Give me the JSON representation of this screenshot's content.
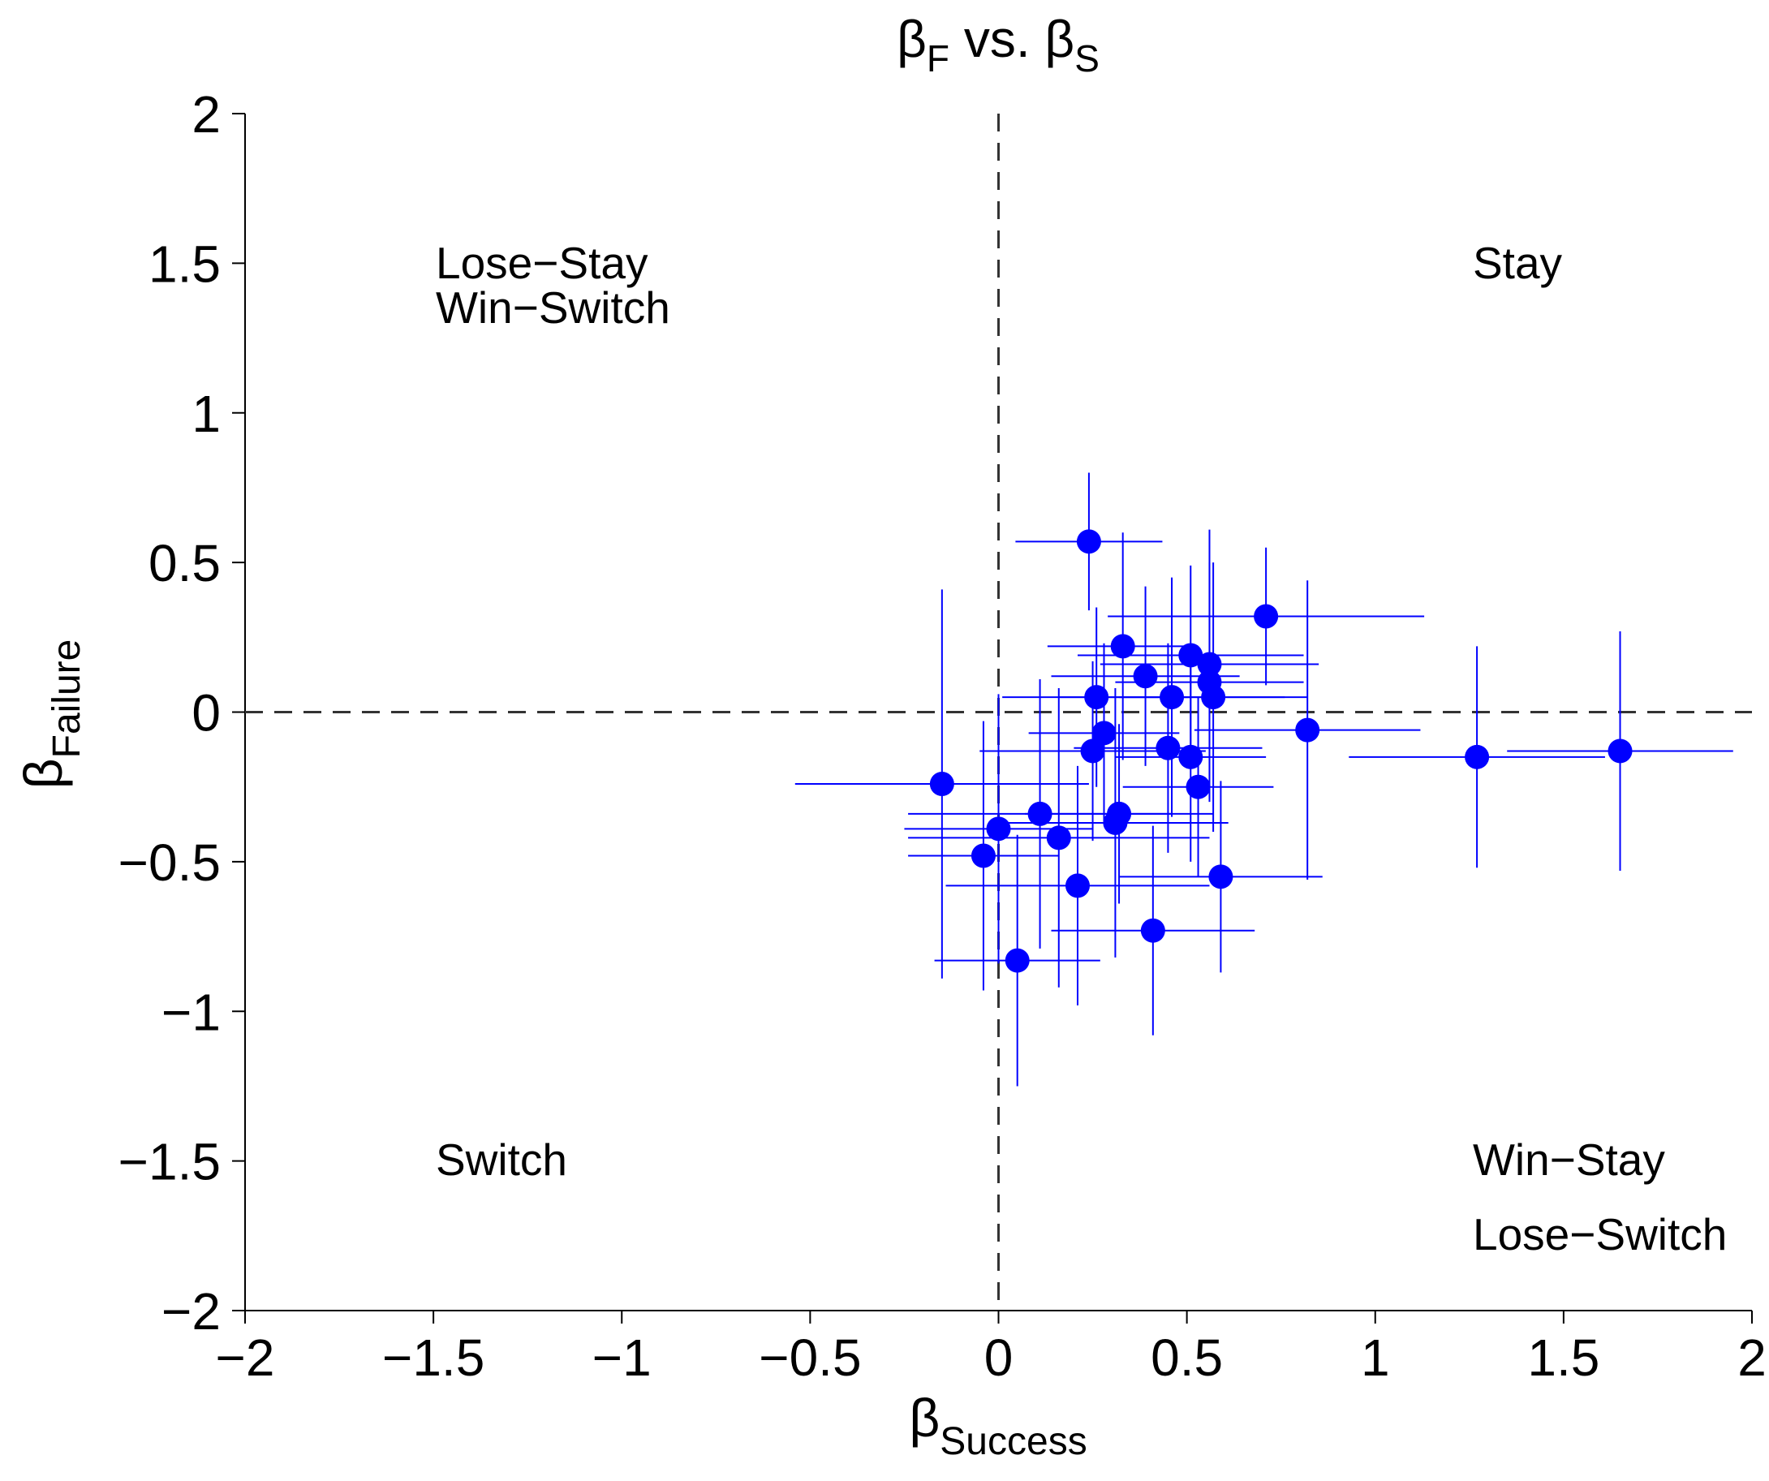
{
  "chart_data": {
    "type": "scatter",
    "title": {
      "parts": [
        "β",
        "F",
        " vs. β",
        "S"
      ]
    },
    "x_label": {
      "parts": [
        "β",
        "Success"
      ]
    },
    "y_label": {
      "parts": [
        "β",
        "Failure"
      ]
    },
    "xlim": [
      -2,
      2
    ],
    "ylim": [
      -2,
      2
    ],
    "xticks": [
      {
        "value": -2,
        "label": "−2"
      },
      {
        "value": -1.5,
        "label": "−1.5"
      },
      {
        "value": -1,
        "label": "−1"
      },
      {
        "value": -0.5,
        "label": "−0.5"
      },
      0,
      0.5,
      1,
      1.5,
      2
    ],
    "yticks": [
      {
        "value": -2,
        "label": "−2"
      },
      {
        "value": -1.5,
        "label": "−1.5"
      },
      {
        "value": -1,
        "label": "−1"
      },
      {
        "value": -0.5,
        "label": "−0.5"
      },
      0,
      0.5,
      1,
      1.5,
      2
    ],
    "reference_lines": {
      "x": 0,
      "y": 0
    },
    "annotations": [
      "Lose−Stay",
      "Win−Switch",
      "Stay",
      "Switch",
      "Win−Stay",
      "Lose−Switch"
    ],
    "series": [
      {
        "color": "#0000ff",
        "x": [
          0.24,
          0.71,
          0.33,
          0.51,
          0.56,
          0.39,
          0.56,
          0.26,
          0.46,
          0.57,
          0.82,
          0.28,
          0.25,
          0.45,
          0.51,
          1.27,
          1.65,
          0.53,
          -0.15,
          0.11,
          0.32,
          0.31,
          0.0,
          0.16,
          -0.04,
          0.59,
          0.21,
          0.41,
          0.05
        ],
        "y": [
          0.57,
          0.32,
          0.22,
          0.19,
          0.16,
          0.12,
          0.1,
          0.05,
          0.05,
          0.05,
          -0.06,
          -0.07,
          -0.13,
          -0.12,
          -0.15,
          -0.15,
          -0.13,
          -0.25,
          -0.24,
          -0.34,
          -0.34,
          -0.37,
          -0.39,
          -0.42,
          -0.48,
          -0.55,
          -0.58,
          -0.73,
          -0.83
        ],
        "x_error": [
          0.195,
          0.42,
          0.2,
          0.3,
          0.29,
          0.25,
          0.25,
          0.25,
          0.3,
          0.25,
          0.3,
          0.2,
          0.3,
          0.25,
          0.2,
          0.34,
          0.3,
          0.2,
          0.39,
          0.35,
          0.25,
          0.3,
          0.25,
          0.4,
          0.2,
          0.27,
          0.35,
          0.27,
          0.22
        ],
        "y_error": [
          0.23,
          0.23,
          0.38,
          0.3,
          0.45,
          0.3,
          0.4,
          0.3,
          0.4,
          0.45,
          0.5,
          0.3,
          0.3,
          0.35,
          0.35,
          0.37,
          0.4,
          0.3,
          0.65,
          0.45,
          0.3,
          0.45,
          0.45,
          0.5,
          0.45,
          0.32,
          0.4,
          0.35,
          0.42
        ]
      }
    ]
  }
}
